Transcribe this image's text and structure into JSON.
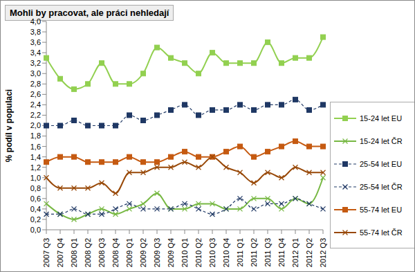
{
  "chart_data": {
    "type": "line",
    "title": "Mohli by pracovat, ale práci nehledají",
    "y_label": "% podíl v populaci",
    "categories": [
      "2007 Q3",
      "2007 Q4",
      "2008 Q1",
      "2008 Q2",
      "2008 Q3",
      "2008 Q4",
      "2009 Q1",
      "2009 Q2",
      "2009 Q3",
      "2009 Q4",
      "2010 Q1",
      "2010 Q2",
      "2010 Q3",
      "2010 Q4",
      "2011 Q1",
      "2011 Q2",
      "2011 Q3",
      "2011 Q4",
      "2012 Q1",
      "2012 Q2",
      "2012 Q3"
    ],
    "series": [
      {
        "name": "15-24 let EU",
        "color": "#92d050",
        "marker": "square",
        "line_style": "solid",
        "values": [
          3.3,
          2.9,
          2.7,
          2.8,
          3.2,
          2.8,
          2.8,
          3.0,
          3.5,
          3.3,
          3.2,
          3.0,
          3.4,
          3.2,
          3.2,
          3.2,
          3.6,
          3.2,
          3.3,
          3.3,
          3.7
        ]
      },
      {
        "name": "15-24 let ČR",
        "color": "#77b843",
        "marker": "x",
        "line_style": "solid",
        "values": [
          0.5,
          0.3,
          0.2,
          0.3,
          0.4,
          0.3,
          0.4,
          0.5,
          0.7,
          0.4,
          0.4,
          0.5,
          0.5,
          0.4,
          0.4,
          0.6,
          0.6,
          0.4,
          0.6,
          0.5,
          1.0
        ]
      },
      {
        "name": "25-54 let EU",
        "color": "#1f3864",
        "marker": "square",
        "line_style": "dashed",
        "values": [
          2.0,
          2.0,
          2.1,
          2.0,
          2.0,
          2.0,
          2.2,
          2.1,
          2.2,
          2.3,
          2.4,
          2.2,
          2.3,
          2.3,
          2.4,
          2.3,
          2.4,
          2.4,
          2.5,
          2.3,
          2.4
        ]
      },
      {
        "name": "25-54 let ČR",
        "color": "#1f3864",
        "marker": "x",
        "line_style": "dashed",
        "values": [
          0.3,
          0.3,
          0.4,
          0.3,
          0.3,
          0.4,
          0.5,
          0.4,
          0.4,
          0.4,
          0.5,
          0.4,
          0.3,
          0.4,
          0.6,
          0.4,
          0.5,
          0.5,
          0.6,
          0.5,
          0.4
        ]
      },
      {
        "name": "55-74 let EU",
        "color": "#c55a11",
        "marker": "square",
        "line_style": "solid",
        "values": [
          1.3,
          1.4,
          1.4,
          1.3,
          1.3,
          1.3,
          1.4,
          1.3,
          1.3,
          1.4,
          1.5,
          1.4,
          1.4,
          1.5,
          1.6,
          1.4,
          1.5,
          1.6,
          1.7,
          1.6,
          1.6
        ]
      },
      {
        "name": "55-74 let ČR",
        "color": "#984807",
        "marker": "x",
        "line_style": "solid",
        "values": [
          1.0,
          0.8,
          0.8,
          0.8,
          0.9,
          0.7,
          1.1,
          1.1,
          1.2,
          1.2,
          1.3,
          1.2,
          1.4,
          1.2,
          1.1,
          0.9,
          1.1,
          1.0,
          1.2,
          1.1,
          1.1
        ]
      }
    ],
    "ylim": [
      0,
      4
    ],
    "yticks": [
      {
        "value": 0,
        "label": "0,0"
      },
      {
        "value": 0.2,
        "label": "0,2"
      },
      {
        "value": 0.4,
        "label": "0,4"
      },
      {
        "value": 0.6,
        "label": "0,6"
      },
      {
        "value": 0.8,
        "label": "0,8"
      },
      {
        "value": 1,
        "label": "1,0"
      },
      {
        "value": 1.2,
        "label": "1,2"
      },
      {
        "value": 1.4,
        "label": "1,4"
      },
      {
        "value": 1.6,
        "label": "1,6"
      },
      {
        "value": 1.8,
        "label": "1,8"
      },
      {
        "value": 2,
        "label": "2,0"
      },
      {
        "value": 2.2,
        "label": "2,2"
      },
      {
        "value": 2.4,
        "label": "2,4"
      },
      {
        "value": 2.6,
        "label": "2,6"
      },
      {
        "value": 2.8,
        "label": "2,8"
      },
      {
        "value": 3,
        "label": "3,0"
      },
      {
        "value": 3.2,
        "label": "3,2"
      },
      {
        "value": 3.4,
        "label": "3,4"
      },
      {
        "value": 3.6,
        "label": "3,6"
      },
      {
        "value": 3.8,
        "label": "3,8"
      },
      {
        "value": 4,
        "label": "4,0"
      }
    ],
    "grid": false,
    "legend": "right"
  }
}
